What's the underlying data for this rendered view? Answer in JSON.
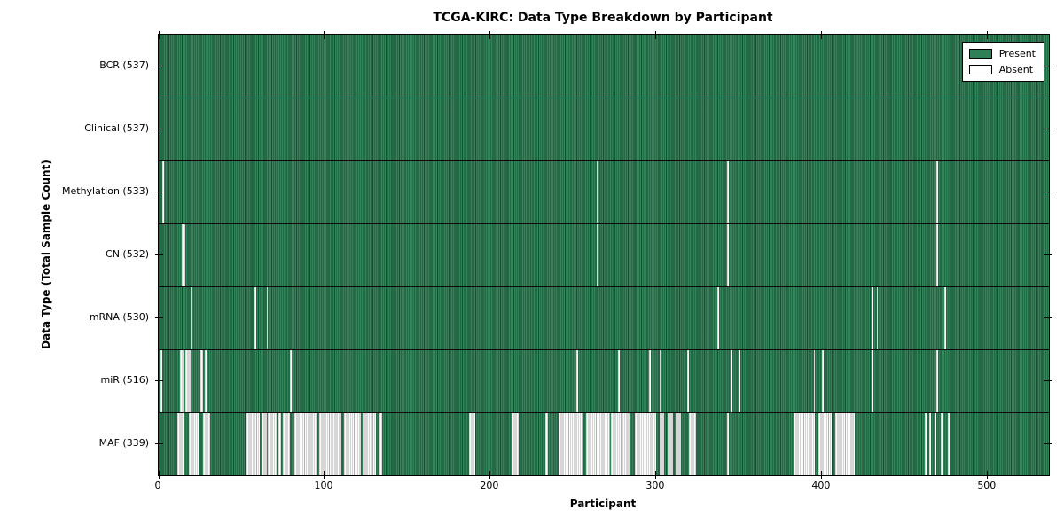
{
  "chart_data": {
    "type": "heatmap",
    "subtype": "presence-absence-matrix",
    "title": "TCGA-KIRC: Data Type Breakdown by Participant",
    "xlabel": "Participant",
    "ylabel": "Data Type (Total Sample Count)",
    "x_ticks": [
      0,
      100,
      200,
      300,
      400,
      500
    ],
    "x_range": [
      0,
      537
    ],
    "n_participants": 537,
    "grid": false,
    "legend_position": "upper right",
    "legend": [
      {
        "label": "Present",
        "color": "#2e8156"
      },
      {
        "label": "Absent",
        "color": "#ffffff"
      }
    ],
    "rows": [
      {
        "label": "BCR (537)",
        "data_type": "BCR",
        "present_count": 537,
        "absent_ranges": []
      },
      {
        "label": "Clinical (537)",
        "data_type": "Clinical",
        "present_count": 537,
        "absent_ranges": []
      },
      {
        "label": "Methylation (533)",
        "data_type": "Methylation",
        "present_count": 533,
        "absent_ranges": [
          [
            2,
            3
          ],
          [
            264,
            265
          ],
          [
            343,
            344
          ],
          [
            469,
            470
          ]
        ]
      },
      {
        "label": "CN (532)",
        "data_type": "CN",
        "present_count": 532,
        "absent_ranges": [
          [
            14,
            16
          ],
          [
            264,
            265
          ],
          [
            343,
            344
          ],
          [
            469,
            470
          ]
        ]
      },
      {
        "label": "mRNA (530)",
        "data_type": "mRNA",
        "present_count": 530,
        "absent_ranges": [
          [
            19,
            20
          ],
          [
            58,
            59
          ],
          [
            65,
            66
          ],
          [
            337,
            338
          ],
          [
            430,
            431
          ],
          [
            433,
            434
          ],
          [
            474,
            475
          ]
        ]
      },
      {
        "label": "miR (516)",
        "data_type": "miR",
        "present_count": 516,
        "absent_ranges": [
          [
            1,
            2
          ],
          [
            13,
            15
          ],
          [
            16,
            19
          ],
          [
            25,
            27
          ],
          [
            28,
            29
          ],
          [
            79,
            80
          ],
          [
            252,
            253
          ],
          [
            277,
            278
          ],
          [
            296,
            297
          ],
          [
            302,
            303
          ],
          [
            319,
            320
          ],
          [
            345,
            346
          ],
          [
            350,
            351
          ],
          [
            395,
            396
          ],
          [
            400,
            401
          ],
          [
            430,
            431
          ],
          [
            469,
            470
          ]
        ]
      },
      {
        "label": "MAF (339)",
        "data_type": "MAF",
        "present_count": 339,
        "absent_ranges": [
          [
            11,
            15
          ],
          [
            18,
            24
          ],
          [
            27,
            31
          ],
          [
            53,
            61
          ],
          [
            62,
            65
          ],
          [
            66,
            71
          ],
          [
            72,
            74
          ],
          [
            75,
            79
          ],
          [
            82,
            96
          ],
          [
            97,
            110
          ],
          [
            112,
            122
          ],
          [
            123,
            131
          ],
          [
            133,
            135
          ],
          [
            187,
            191
          ],
          [
            213,
            217
          ],
          [
            233,
            235
          ],
          [
            241,
            256
          ],
          [
            258,
            272
          ],
          [
            273,
            284
          ],
          [
            287,
            300
          ],
          [
            302,
            305
          ],
          [
            307,
            310
          ],
          [
            312,
            315
          ],
          [
            320,
            324
          ],
          [
            343,
            344
          ],
          [
            383,
            396
          ],
          [
            398,
            406
          ],
          [
            408,
            420
          ],
          [
            462,
            463
          ],
          [
            465,
            466
          ],
          [
            468,
            469
          ],
          [
            472,
            473
          ],
          [
            476,
            477
          ]
        ]
      }
    ]
  }
}
